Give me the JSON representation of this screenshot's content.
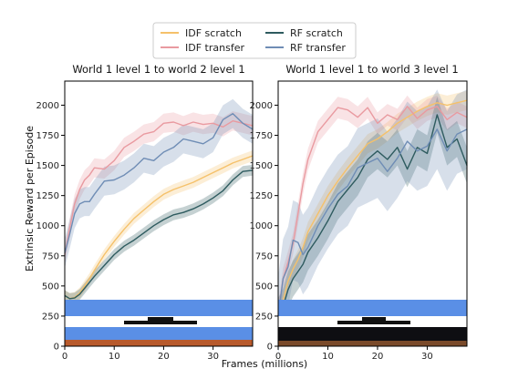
{
  "chart_data": [
    {
      "type": "line",
      "title": "World 1 level 1 to world 2 level 1",
      "xlabel": "Frames (millions)",
      "ylabel": "Extrinsic Reward per Episode",
      "xlim": [
        0,
        38
      ],
      "ylim": [
        0,
        2200
      ],
      "xticks": [
        0,
        10,
        20,
        30
      ],
      "yticks": [
        0,
        250,
        500,
        750,
        1000,
        1250,
        1500,
        1750,
        2000
      ],
      "grid": false,
      "series": [
        {
          "name": "IDF scratch",
          "color": "#f5c16a",
          "band": 45,
          "x": [
            0,
            1,
            2,
            3,
            4,
            5,
            6,
            8,
            10,
            12,
            14,
            16,
            18,
            20,
            22,
            24,
            26,
            28,
            30,
            32,
            34,
            36,
            38
          ],
          "y": [
            420,
            395,
            405,
            440,
            500,
            560,
            630,
            760,
            870,
            970,
            1060,
            1130,
            1200,
            1260,
            1300,
            1330,
            1360,
            1400,
            1440,
            1480,
            1520,
            1550,
            1580
          ]
        },
        {
          "name": "IDF transfer",
          "color": "#e99aa0",
          "band": 80,
          "x": [
            0,
            1,
            2,
            3,
            4,
            5,
            6,
            8,
            10,
            12,
            14,
            16,
            18,
            20,
            22,
            24,
            26,
            28,
            30,
            32,
            34,
            36,
            38
          ],
          "y": [
            760,
            980,
            1180,
            1300,
            1380,
            1420,
            1480,
            1470,
            1540,
            1650,
            1700,
            1760,
            1780,
            1850,
            1860,
            1830,
            1860,
            1840,
            1850,
            1820,
            1870,
            1850,
            1830
          ]
        },
        {
          "name": "RF scratch",
          "color": "#2e5b5f",
          "band": 45,
          "x": [
            0,
            1,
            2,
            3,
            4,
            5,
            6,
            8,
            10,
            12,
            14,
            16,
            18,
            20,
            22,
            24,
            26,
            28,
            30,
            32,
            34,
            36,
            38
          ],
          "y": [
            420,
            395,
            400,
            430,
            480,
            530,
            580,
            670,
            760,
            830,
            880,
            940,
            1000,
            1050,
            1090,
            1110,
            1140,
            1180,
            1230,
            1290,
            1380,
            1450,
            1460
          ]
        },
        {
          "name": "RF transfer",
          "color": "#6f8db5",
          "band": 120,
          "x": [
            0,
            1,
            2,
            3,
            4,
            5,
            6,
            8,
            10,
            12,
            14,
            16,
            18,
            20,
            22,
            24,
            26,
            28,
            30,
            32,
            34,
            36,
            38
          ],
          "y": [
            770,
            930,
            1100,
            1180,
            1200,
            1200,
            1260,
            1370,
            1380,
            1420,
            1480,
            1560,
            1540,
            1610,
            1650,
            1720,
            1700,
            1680,
            1730,
            1880,
            1930,
            1850,
            1800
          ]
        }
      ]
    },
    {
      "type": "line",
      "title": "World 1 level 1 to world 3 level 1",
      "xlabel": "Frames (millions)",
      "ylabel": "",
      "xlim": [
        0,
        38
      ],
      "ylim": [
        0,
        2200
      ],
      "xticks": [
        0,
        10,
        20,
        30
      ],
      "yticks": [
        0,
        250,
        500,
        750,
        1000,
        1250,
        1500,
        1750,
        2000
      ],
      "grid": false,
      "series": [
        {
          "name": "IDF scratch",
          "color": "#f5c16a",
          "band": 80,
          "x": [
            0,
            1,
            2,
            3,
            4,
            5,
            6,
            8,
            10,
            12,
            14,
            16,
            18,
            20,
            22,
            24,
            26,
            28,
            30,
            32,
            34,
            36,
            38
          ],
          "y": [
            230,
            380,
            540,
            640,
            720,
            820,
            950,
            1100,
            1250,
            1370,
            1480,
            1580,
            1680,
            1720,
            1780,
            1850,
            1900,
            1950,
            1990,
            2020,
            2000,
            2020,
            2040
          ]
        },
        {
          "name": "IDF transfer",
          "color": "#e99aa0",
          "band": 90,
          "x": [
            0,
            1,
            2,
            3,
            4,
            5,
            6,
            8,
            10,
            12,
            14,
            16,
            18,
            20,
            22,
            24,
            26,
            28,
            30,
            32,
            34,
            36,
            38
          ],
          "y": [
            260,
            560,
            700,
            850,
            1100,
            1350,
            1550,
            1780,
            1880,
            1980,
            1960,
            1900,
            1980,
            1850,
            1920,
            1880,
            1990,
            1890,
            1960,
            1990,
            1880,
            1940,
            1900
          ]
        },
        {
          "name": "RF scratch",
          "color": "#2e5b5f",
          "band": 150,
          "x": [
            0,
            1,
            2,
            3,
            4,
            5,
            6,
            8,
            10,
            12,
            14,
            16,
            18,
            20,
            22,
            24,
            26,
            28,
            30,
            32,
            34,
            36,
            38
          ],
          "y": [
            250,
            330,
            470,
            560,
            620,
            680,
            780,
            900,
            1040,
            1200,
            1300,
            1400,
            1550,
            1620,
            1550,
            1650,
            1470,
            1650,
            1600,
            1920,
            1650,
            1720,
            1500
          ]
        },
        {
          "name": "RF transfer",
          "color": "#6f8db5",
          "band": 330,
          "x": [
            0,
            1,
            2,
            3,
            4,
            5,
            6,
            8,
            10,
            12,
            14,
            16,
            18,
            20,
            22,
            24,
            26,
            28,
            30,
            32,
            34,
            36,
            38
          ],
          "y": [
            250,
            560,
            660,
            880,
            860,
            760,
            820,
            1000,
            1140,
            1260,
            1330,
            1480,
            1520,
            1560,
            1450,
            1560,
            1700,
            1620,
            1660,
            1800,
            1620,
            1760,
            1800
          ]
        }
      ]
    }
  ],
  "legend": {
    "placement": "top-center",
    "items": [
      {
        "label": "IDF scratch",
        "color": "#f5c16a"
      },
      {
        "label": "IDF transfer",
        "color": "#e99aa0"
      },
      {
        "label": "RF scratch",
        "color": "#2e5b5f"
      },
      {
        "label": "RF transfer",
        "color": "#6f8db5"
      }
    ]
  },
  "shared": {
    "xlabel": "Frames (millions)",
    "ylabel": "Extrinsic Reward per Episode"
  }
}
